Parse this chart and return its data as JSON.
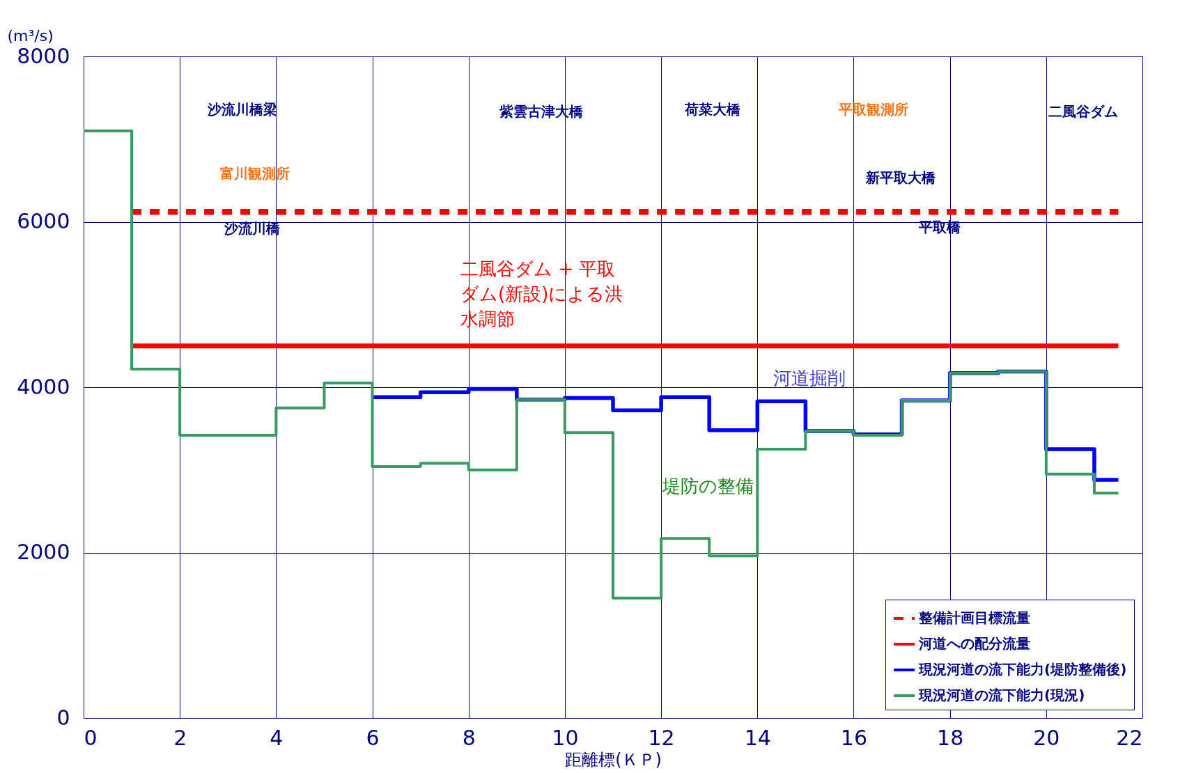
{
  "chart_data": {
    "type": "step",
    "xlabel": "距離標(ＫＰ)",
    "ylabel": "(m³/s)",
    "xlim": [
      0,
      22
    ],
    "xticks": [
      0,
      2,
      4,
      6,
      8,
      10,
      12,
      14,
      16,
      18,
      20,
      22
    ],
    "ylim": [
      0,
      8000
    ],
    "yticks": [
      0,
      2000,
      4000,
      6000,
      8000
    ],
    "grid": true,
    "legend": "bottom right",
    "series": [
      {
        "name": "整備計画目標流量",
        "type": "line",
        "line_style": "dashed",
        "color": "#ff0000",
        "x": [
          1,
          21.5
        ],
        "values": [
          6120,
          6120
        ]
      },
      {
        "name": "河道への配分流量",
        "type": "line",
        "line_style": "solid",
        "color": "#ff0000",
        "x": [
          1,
          21.5
        ],
        "values": [
          4500,
          4500
        ]
      },
      {
        "name": "現況河道の流下能力(堤防整備後)",
        "line_style": "solid",
        "color": "#0000ff",
        "x": [
          6,
          7,
          8,
          9,
          10,
          11,
          12,
          13,
          14,
          15,
          16,
          17,
          18,
          19,
          20,
          21,
          21.5
        ],
        "values": [
          3880,
          3940,
          3980,
          3850,
          3870,
          3720,
          3880,
          3480,
          3830,
          3470,
          3430,
          3840,
          4170,
          4190,
          3250,
          2880,
          2880
        ]
      },
      {
        "name": "現況河道の流下能力(現況)",
        "line_style": "solid",
        "color": "#3a9a63",
        "x": [
          0,
          1,
          2,
          4,
          5,
          6,
          7,
          8,
          9,
          10,
          11,
          12,
          13,
          14,
          15,
          16,
          17,
          18,
          19,
          20,
          21,
          21.5
        ],
        "values": [
          7100,
          4220,
          3420,
          3750,
          4050,
          3040,
          3080,
          3000,
          3850,
          3450,
          1450,
          2170,
          1960,
          3250,
          3470,
          3420,
          3840,
          4170,
          4190,
          2950,
          2720,
          2720
        ]
      }
    ],
    "annotations": [
      "沙流川橋梁",
      "富川観測所",
      "沙流川橋",
      "紫雲古津大橋",
      "荷菜大橋",
      "平取観測所",
      "新平取大橋",
      "平取橋",
      "二風谷ダム",
      "二風谷ダム + 平取ダム(新設)による洪水調節",
      "河道掘削",
      "堤防の整備"
    ]
  }
}
